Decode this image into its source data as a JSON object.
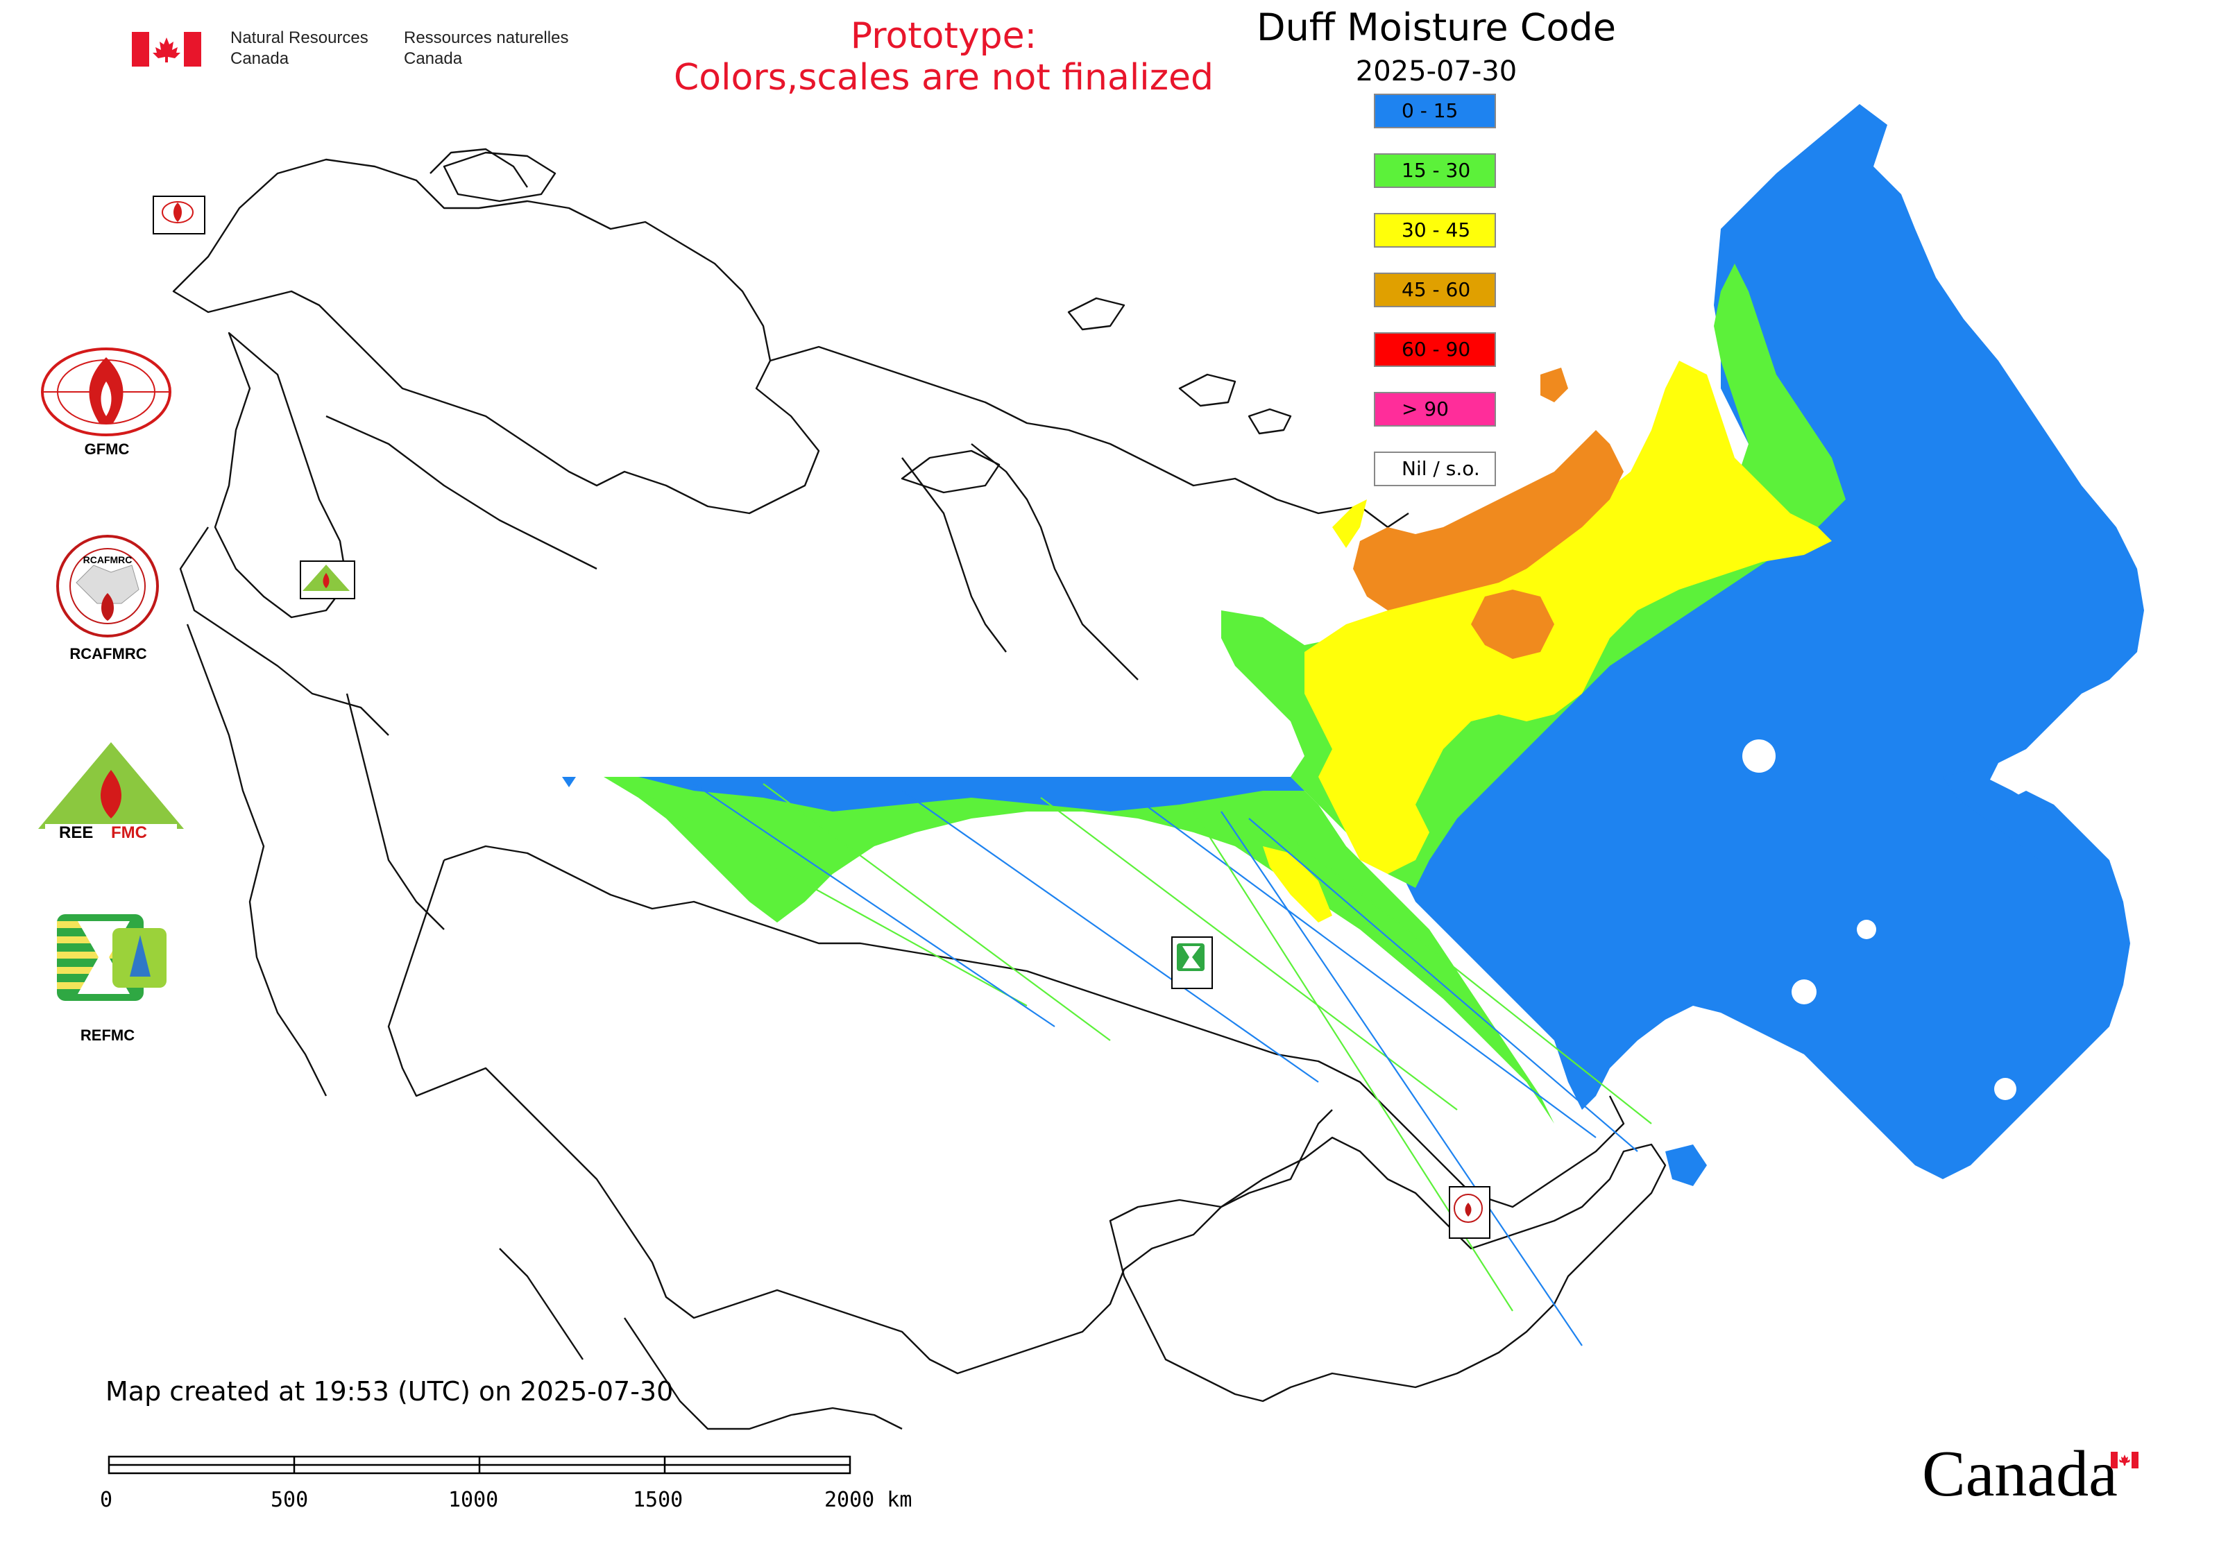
{
  "header": {
    "gov_en_line1": "Natural Resources",
    "gov_en_line2": "Canada",
    "gov_fr_line1": "Ressources naturelles",
    "gov_fr_line2": "Canada",
    "prototype_line1": "Prototype:",
    "prototype_line2": "Colors,scales are not finalized",
    "title": "Duff Moisture Code",
    "date": "2025-07-30"
  },
  "legend": [
    {
      "label": "0 - 15",
      "color": "#1e83f0"
    },
    {
      "label": "15 - 30",
      "color": "#5cf13a"
    },
    {
      "label": "30 - 45",
      "color": "#ffff0a"
    },
    {
      "label": "45 - 60",
      "color": "#e0a000"
    },
    {
      "label": "60 - 90",
      "color": "#ff0000"
    },
    {
      "label": "> 90",
      "color": "#ff2d9a"
    },
    {
      "label": "Nil / s.o.",
      "color": "#ffffff"
    }
  ],
  "logos": {
    "gfmc": "GFMC",
    "rcafmrc": "RCAFMRC",
    "reefmc": "REEFMC",
    "refmc": "REFMC",
    "rcafmrc_ring_text": "RCAFMRC"
  },
  "footer": {
    "created": "Map created at 19:53 (UTC) on 2025-07-30",
    "wordmark": "Canada"
  },
  "scale_bar": {
    "ticks": [
      "0",
      "500",
      "1000",
      "1500",
      "2000 km"
    ]
  },
  "colors": {
    "outline": "#111111",
    "orange_fill": "#f08a1e",
    "accent_red": "#e8152b"
  }
}
